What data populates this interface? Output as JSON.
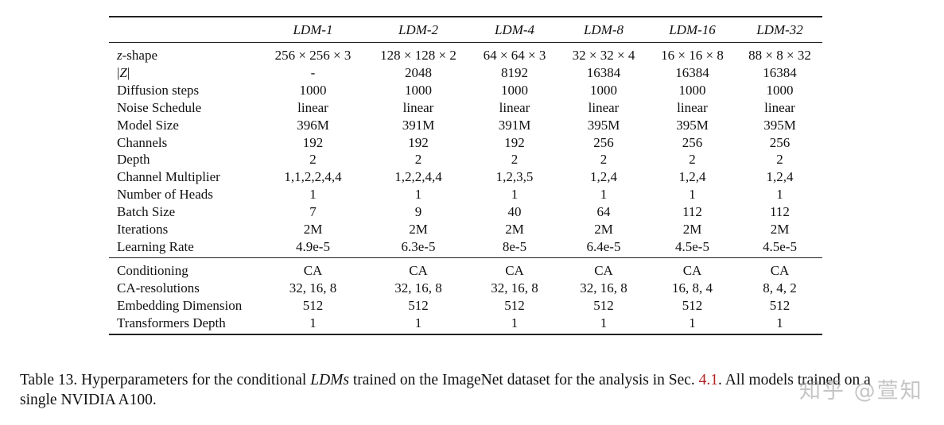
{
  "table": {
    "columns": [
      "",
      "LDM-1",
      "LDM-2",
      "LDM-4",
      "LDM-8",
      "LDM-16",
      "LDM-32"
    ],
    "section1": [
      {
        "label": "z-shape",
        "values": [
          "256 × 256 × 3",
          "128 × 128 × 2",
          "64 × 64 × 3",
          "32 × 32 × 4",
          "16 × 16 × 8",
          "88 × 8 × 32"
        ]
      },
      {
        "label": "|Z|",
        "values": [
          "-",
          "2048",
          "8192",
          "16384",
          "16384",
          "16384"
        ]
      },
      {
        "label": "Diffusion steps",
        "values": [
          "1000",
          "1000",
          "1000",
          "1000",
          "1000",
          "1000"
        ]
      },
      {
        "label": "Noise Schedule",
        "values": [
          "linear",
          "linear",
          "linear",
          "linear",
          "linear",
          "linear"
        ]
      },
      {
        "label": "Model Size",
        "values": [
          "396M",
          "391M",
          "391M",
          "395M",
          "395M",
          "395M"
        ]
      },
      {
        "label": "Channels",
        "values": [
          "192",
          "192",
          "192",
          "256",
          "256",
          "256"
        ]
      },
      {
        "label": "Depth",
        "values": [
          "2",
          "2",
          "2",
          "2",
          "2",
          "2"
        ]
      },
      {
        "label": "Channel Multiplier",
        "values": [
          "1,1,2,2,4,4",
          "1,2,2,4,4",
          "1,2,3,5",
          "1,2,4",
          "1,2,4",
          "1,2,4"
        ]
      },
      {
        "label": "Number of Heads",
        "values": [
          "1",
          "1",
          "1",
          "1",
          "1",
          "1"
        ]
      },
      {
        "label": "Batch Size",
        "values": [
          "7",
          "9",
          "40",
          "64",
          "112",
          "112"
        ]
      },
      {
        "label": "Iterations",
        "values": [
          "2M",
          "2M",
          "2M",
          "2M",
          "2M",
          "2M"
        ]
      },
      {
        "label": "Learning Rate",
        "values": [
          "4.9e-5",
          "6.3e-5",
          "8e-5",
          "6.4e-5",
          "4.5e-5",
          "4.5e-5"
        ]
      }
    ],
    "section2": [
      {
        "label": "Conditioning",
        "values": [
          "CA",
          "CA",
          "CA",
          "CA",
          "CA",
          "CA"
        ]
      },
      {
        "label": "CA-resolutions",
        "values": [
          "32, 16, 8",
          "32, 16, 8",
          "32, 16, 8",
          "32, 16, 8",
          "16, 8, 4",
          "8, 4, 2"
        ]
      },
      {
        "label": "Embedding Dimension",
        "values": [
          "512",
          "512",
          "512",
          "512",
          "512",
          "512"
        ]
      },
      {
        "label": "Transformers Depth",
        "values": [
          "1",
          "1",
          "1",
          "1",
          "1",
          "1"
        ]
      }
    ]
  },
  "caption": {
    "prefix": "Table 13.  Hyperparameters for the conditional ",
    "emph": "LDMs",
    "middle": " trained on the ImageNet dataset for the analysis in Sec. ",
    "ref": "4.1",
    "suffix": ". All models trained on a",
    "line2": "single NVIDIA A100."
  },
  "watermark": "知乎 @萱知"
}
